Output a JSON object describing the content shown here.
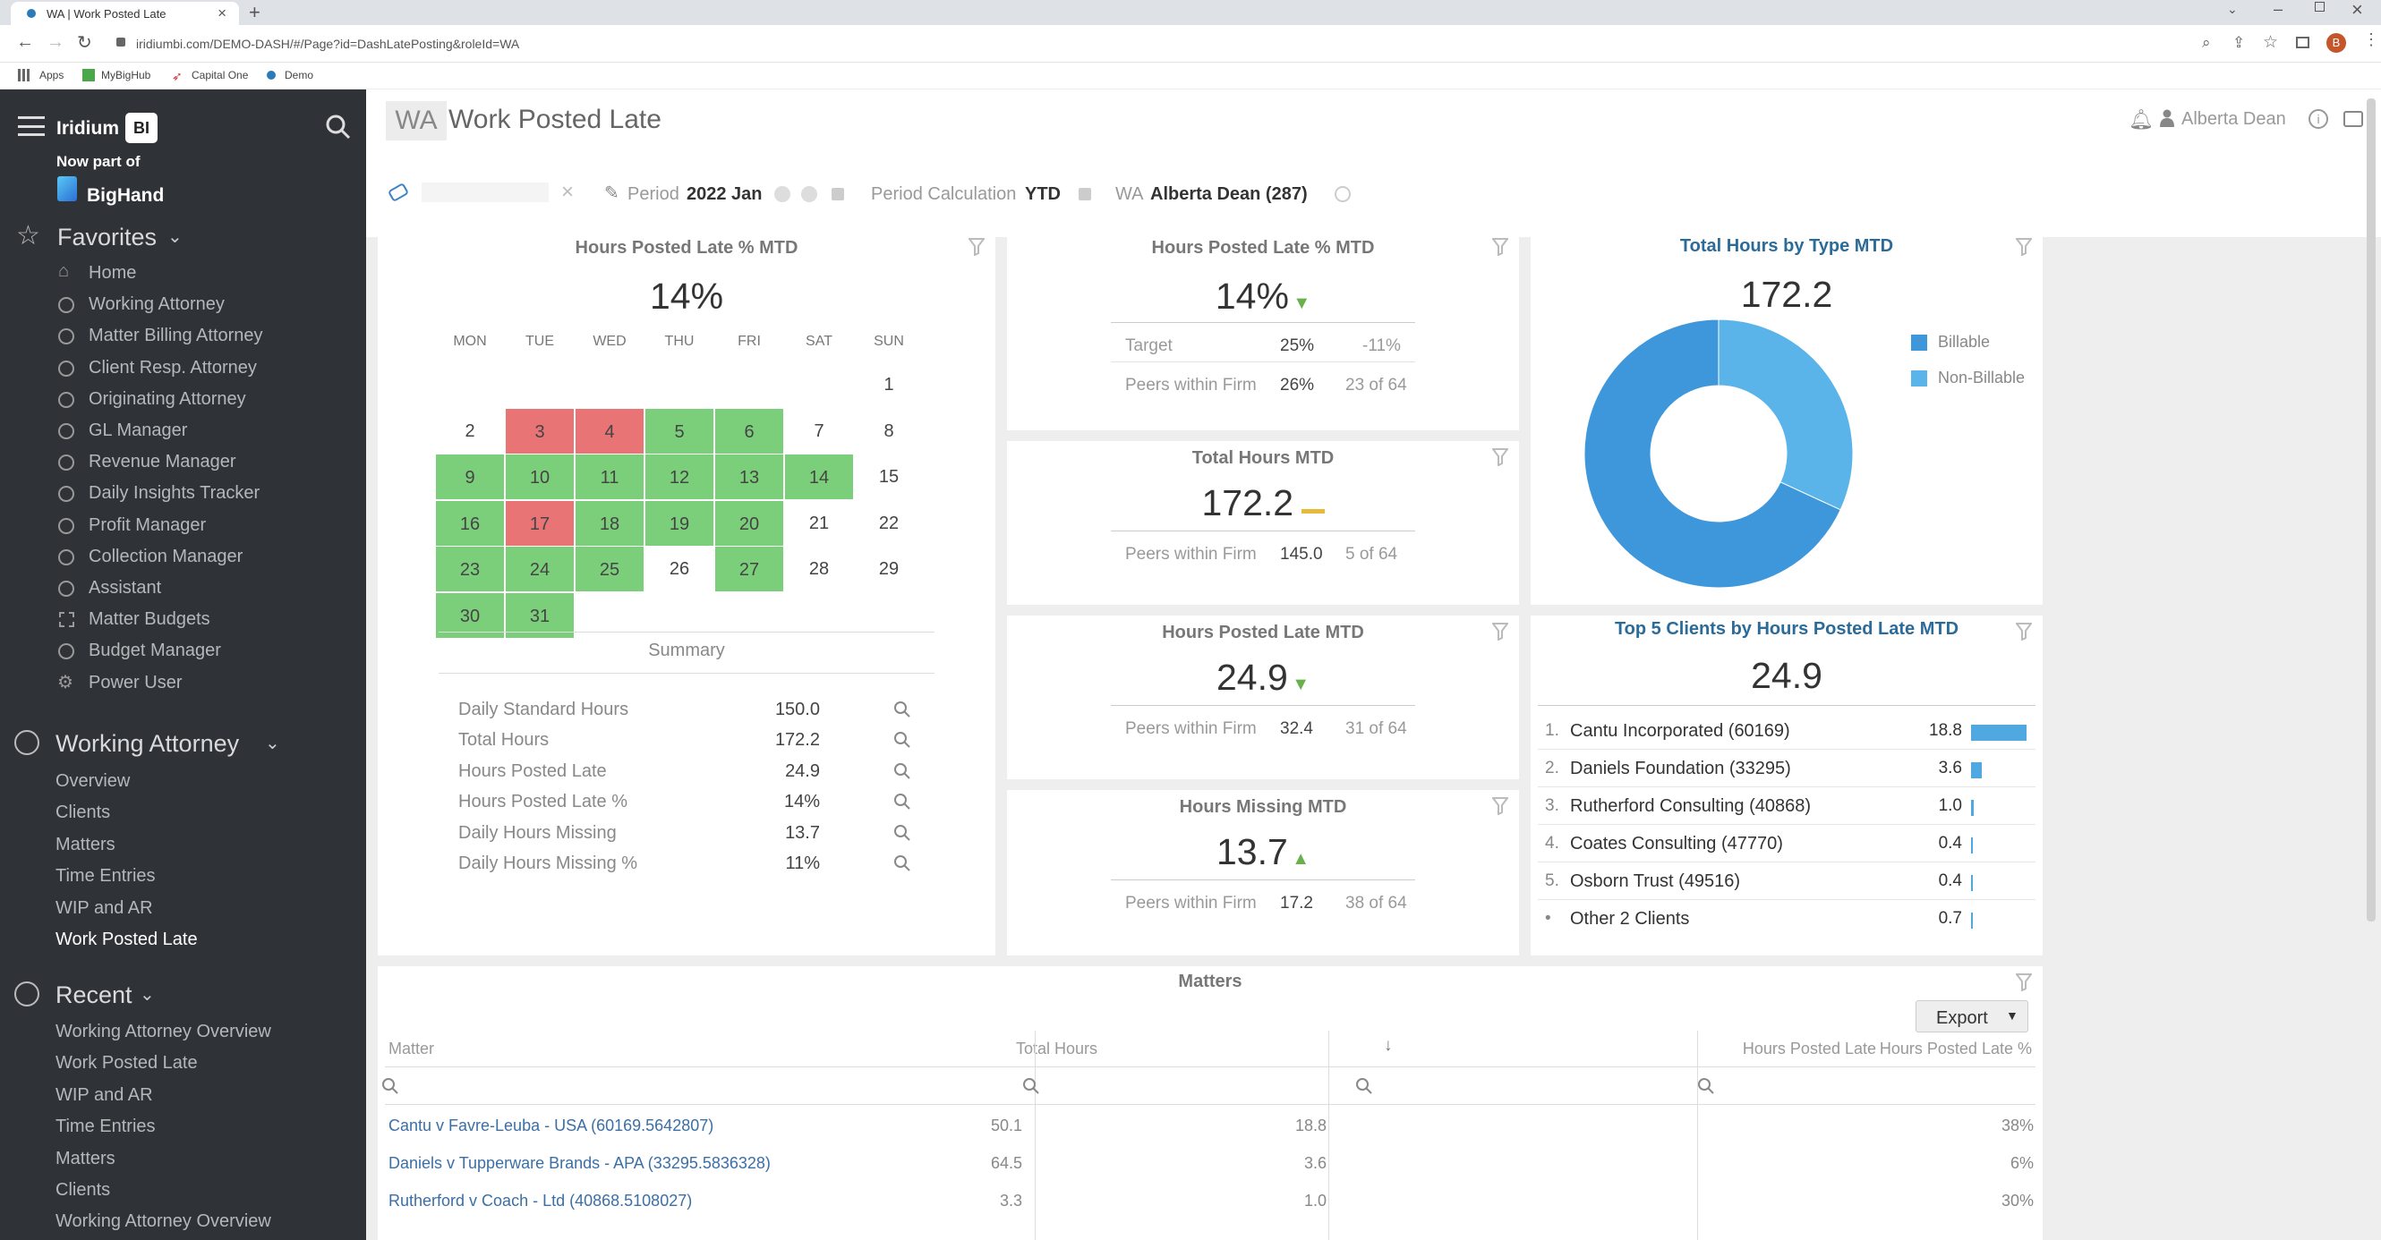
{
  "browser": {
    "tab_title": "WA | Work Posted Late",
    "url": "iridiumbi.com/DEMO-DASH/#/Page?id=DashLatePosting&roleId=WA",
    "bookmarks": [
      "Apps",
      "MyBigHub",
      "Capital One",
      "Demo"
    ]
  },
  "sidebar": {
    "brand": "Iridium",
    "brand_badge": "BI",
    "now_part_of": "Now part of",
    "bighand": "BigHand",
    "favorites_title": "Favorites",
    "favorites": [
      "Home",
      "Working Attorney",
      "Matter Billing Attorney",
      "Client Resp. Attorney",
      "Originating Attorney",
      "GL Manager",
      "Revenue Manager",
      "Daily Insights Tracker",
      "Profit Manager",
      "Collection Manager",
      "Assistant",
      "Matter Budgets",
      "Budget Manager",
      "Power User"
    ],
    "section_title": "Working Attorney",
    "section_items": [
      "Overview",
      "Clients",
      "Matters",
      "Time Entries",
      "WIP and AR",
      "Work Posted Late"
    ],
    "recent_title": "Recent",
    "recent_items": [
      "Working Attorney Overview",
      "Work Posted Late",
      "WIP and AR",
      "Time Entries",
      "Matters",
      "Clients",
      "Working Attorney Overview"
    ]
  },
  "header": {
    "role": "WA",
    "title": "Work Posted Late",
    "user": "Alberta Dean"
  },
  "filters": {
    "period_label": "Period",
    "period_value": "2022 Jan",
    "calc_label": "Period Calculation",
    "calc_value": "YTD",
    "wa_label": "WA",
    "wa_value": "Alberta Dean (287)"
  },
  "calendar_panel": {
    "title": "Hours Posted Late % MTD",
    "value": "14%",
    "weekdays": [
      "MON",
      "TUE",
      "WED",
      "THU",
      "FRI",
      "SAT",
      "SUN"
    ],
    "days": [
      "1",
      "2",
      "3",
      "4",
      "5",
      "6",
      "7",
      "8",
      "9",
      "10",
      "11",
      "12",
      "13",
      "14",
      "15",
      "16",
      "17",
      "18",
      "19",
      "20",
      "21",
      "22",
      "23",
      "24",
      "25",
      "26",
      "27",
      "28",
      "29",
      "30",
      "31"
    ],
    "summary_title": "Summary",
    "summary_rows": [
      {
        "label": "Daily Standard Hours",
        "value": "150.0"
      },
      {
        "label": "Total Hours",
        "value": "172.2"
      },
      {
        "label": "Hours Posted Late",
        "value": "24.9"
      },
      {
        "label": "Hours Posted Late %",
        "value": "14%"
      },
      {
        "label": "Daily Hours Missing",
        "value": "13.7"
      },
      {
        "label": "Daily Hours Missing %",
        "value": "11%"
      }
    ]
  },
  "kpi_late_pct": {
    "title": "Hours Posted Late % MTD",
    "value": "14%",
    "target_label": "Target",
    "target_value": "25%",
    "target_diff": "-11%",
    "peers_label": "Peers within Firm",
    "peers_value": "26%",
    "peers_rank": "23 of 64"
  },
  "kpi_total": {
    "title": "Total Hours MTD",
    "value": "172.2",
    "peers_label": "Peers within Firm",
    "peers_value": "145.0",
    "peers_rank": "5 of 64"
  },
  "kpi_late": {
    "title": "Hours Posted Late MTD",
    "value": "24.9",
    "peers_label": "Peers within Firm",
    "peers_value": "32.4",
    "peers_rank": "31 of 64"
  },
  "kpi_missing": {
    "title": "Hours Missing MTD",
    "value": "13.7",
    "peers_label": "Peers within Firm",
    "peers_value": "17.2",
    "peers_rank": "38 of 64"
  },
  "donut_panel": {
    "title": "Total Hours by Type MTD",
    "value": "172.2"
  },
  "chart_data": {
    "type": "pie",
    "title": "Total Hours by Type MTD",
    "categories": [
      "Billable",
      "Non-Billable"
    ],
    "values": [
      117.3,
      54.9
    ],
    "colors": [
      "#3e97db",
      "#5ab4ea"
    ],
    "legend": "right"
  },
  "top_clients": {
    "title": "Top 5 Clients by Hours Posted Late MTD",
    "value": "24.9",
    "max": 18.8,
    "rows": [
      {
        "rank": "1.",
        "name": "Cantu Incorporated (60169)",
        "value": "18.8",
        "num": 18.8
      },
      {
        "rank": "2.",
        "name": "Daniels Foundation (33295)",
        "value": "3.6",
        "num": 3.6
      },
      {
        "rank": "3.",
        "name": "Rutherford Consulting (40868)",
        "value": "1.0",
        "num": 1.0
      },
      {
        "rank": "4.",
        "name": "Coates Consulting (47770)",
        "value": "0.4",
        "num": 0.4
      },
      {
        "rank": "5.",
        "name": "Osborn Trust (49516)",
        "value": "0.4",
        "num": 0.4
      },
      {
        "rank": "•",
        "name": "Other 2 Clients",
        "value": "0.7",
        "num": 0.7
      }
    ]
  },
  "matters": {
    "title": "Matters",
    "export_label": "Export",
    "columns": [
      "Matter",
      "Total Hours",
      "Hours Posted Late",
      "Hours Posted Late %"
    ],
    "rows": [
      {
        "matter": "Cantu v Favre-Leuba - USA (60169.5642807)",
        "total": "50.1",
        "late": "18.8",
        "pct": "38%"
      },
      {
        "matter": "Daniels v Tupperware Brands - APA (33295.5836328)",
        "total": "64.5",
        "late": "3.6",
        "pct": "6%"
      },
      {
        "matter": "Rutherford v Coach - Ltd (40868.5108027)",
        "total": "3.3",
        "late": "1.0",
        "pct": "30%"
      }
    ]
  }
}
